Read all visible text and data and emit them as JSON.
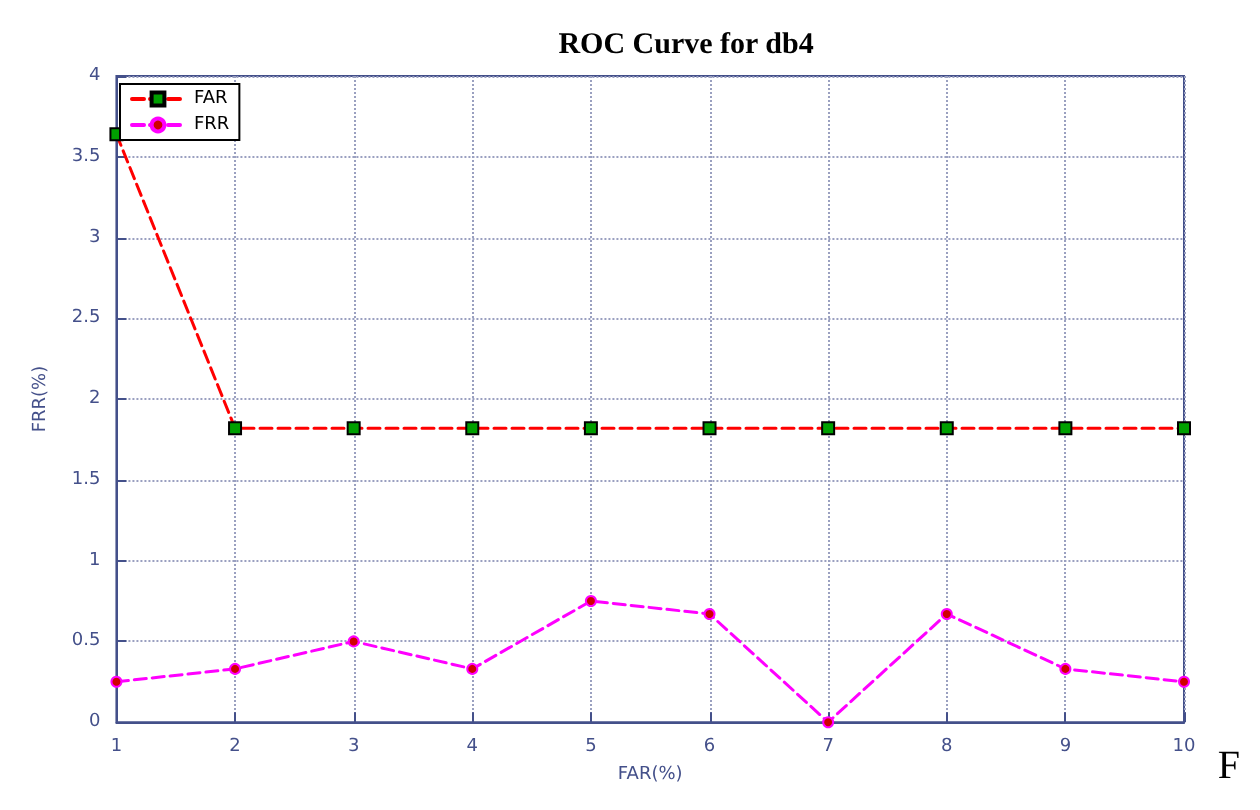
{
  "chart_data": {
    "type": "line",
    "title": "ROC Curve for db4",
    "xlabel": "FAR(%)",
    "ylabel": "FRR(%)",
    "x": [
      1,
      2,
      3,
      4,
      5,
      6,
      7,
      8,
      9,
      10
    ],
    "series": [
      {
        "name": "FAR",
        "color": "#ff0000",
        "marker": "square",
        "values": [
          3.64,
          1.82,
          1.82,
          1.82,
          1.82,
          1.82,
          1.82,
          1.82,
          1.82,
          1.82
        ]
      },
      {
        "name": "FRR",
        "color": "#ff00ff",
        "marker": "circle",
        "values": [
          0.25,
          0.33,
          0.5,
          0.33,
          0.75,
          0.67,
          0,
          0.67,
          0.33,
          0.25
        ]
      }
    ],
    "xlim": [
      1,
      10
    ],
    "xticks": [
      1,
      2,
      3,
      4,
      5,
      6,
      7,
      8,
      9,
      10
    ],
    "ylim": [
      0,
      4
    ],
    "yticks": [
      0,
      0.5,
      1,
      1.5,
      2,
      2.5,
      3,
      3.5,
      4
    ],
    "grid": true,
    "legend": "top left",
    "line_style": "dashed",
    "annotations": [
      "F"
    ]
  }
}
